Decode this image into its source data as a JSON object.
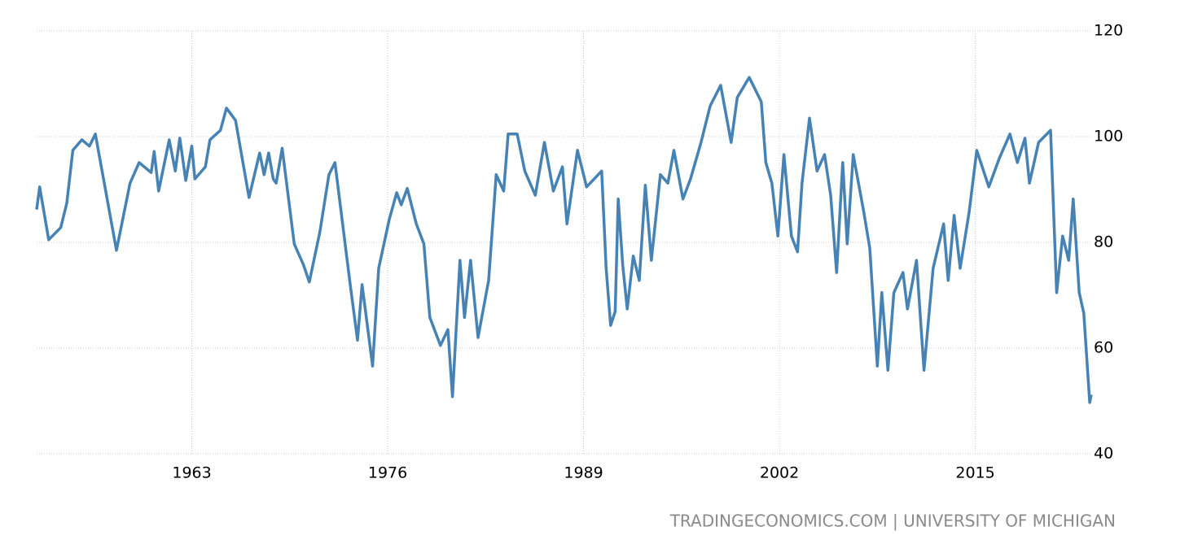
{
  "chart_data": {
    "type": "line",
    "source": "TRADINGECONOMICS.COM | UNIVERSITY OF MICHIGAN",
    "x": [
      1952.7,
      1952.9,
      1953.5,
      1954.3,
      1954.7,
      1955.1,
      1955.7,
      1956.2,
      1956.6,
      1958.0,
      1958.9,
      1959.5,
      1960.3,
      1960.5,
      1960.8,
      1961.5,
      1961.9,
      1962.2,
      1962.6,
      1963.0,
      1963.2,
      1963.9,
      1964.2,
      1964.9,
      1965.3,
      1965.9,
      1966.8,
      1967.5,
      1967.8,
      1968.1,
      1968.4,
      1968.6,
      1969.0,
      1969.8,
      1970.4,
      1970.8,
      1971.5,
      1972.1,
      1972.5,
      1973.5,
      1974.0,
      1974.3,
      1975.0,
      1975.4,
      1976.1,
      1976.6,
      1976.9,
      1977.3,
      1977.9,
      1978.4,
      1978.8,
      1979.5,
      1980.0,
      1980.3,
      1980.8,
      1981.1,
      1981.5,
      1982.0,
      1982.7,
      1983.2,
      1983.7,
      1984.0,
      1984.6,
      1985.1,
      1985.8,
      1986.4,
      1987.0,
      1987.6,
      1987.9,
      1988.6,
      1989.2,
      1990.2,
      1990.5,
      1990.8,
      1991.1,
      1991.3,
      1991.6,
      1991.9,
      1992.3,
      1992.7,
      1993.1,
      1993.5,
      1994.1,
      1994.6,
      1995.0,
      1995.6,
      1996.1,
      1996.8,
      1997.4,
      1998.1,
      1998.8,
      1999.2,
      2000.0,
      2000.8,
      2001.1,
      2001.5,
      2001.9,
      2002.3,
      2002.8,
      2003.2,
      2003.5,
      2004.0,
      2004.5,
      2005.0,
      2005.4,
      2005.8,
      2006.2,
      2006.5,
      2006.9,
      2007.6,
      2008.0,
      2008.5,
      2008.8,
      2009.2,
      2009.6,
      2010.2,
      2010.5,
      2011.1,
      2011.6,
      2012.2,
      2012.9,
      2013.2,
      2013.6,
      2014.0,
      2014.6,
      2015.1,
      2015.9,
      2016.6,
      2017.3,
      2017.8,
      2018.3,
      2018.6,
      2019.2,
      2020.0,
      2020.4,
      2020.8,
      2021.2,
      2021.5,
      2021.9,
      2022.2,
      2022.6,
      2022.7
    ],
    "series": [
      {
        "color": "#4682b4",
        "values": [
          86.2,
          90.5,
          80.5,
          82.8,
          87.4,
          97.4,
          99.4,
          98.2,
          100.5,
          78.5,
          91.2,
          95.1,
          93.2,
          97.2,
          89.7,
          99.4,
          93.5,
          99.7,
          91.7,
          98.2,
          92.0,
          94.3,
          99.4,
          101.2,
          105.4,
          103.1,
          88.5,
          96.9,
          92.8,
          96.9,
          92.0,
          91.2,
          97.8,
          79.7,
          75.8,
          72.5,
          82.0,
          92.8,
          95.1,
          72.3,
          61.5,
          72.0,
          56.6,
          75.1,
          84.3,
          89.4,
          87.1,
          90.2,
          83.5,
          79.7,
          65.8,
          60.5,
          63.5,
          50.8,
          76.6,
          65.8,
          76.6,
          62.0,
          72.8,
          92.8,
          89.7,
          100.5,
          100.5,
          93.5,
          88.9,
          98.9,
          89.7,
          94.3,
          83.5,
          97.4,
          90.5,
          93.5,
          75.1,
          64.3,
          66.9,
          88.2,
          75.8,
          67.4,
          77.4,
          72.8,
          90.8,
          76.6,
          92.8,
          91.2,
          97.4,
          88.2,
          92.0,
          98.9,
          105.8,
          109.7,
          98.9,
          107.4,
          111.2,
          106.6,
          95.1,
          91.2,
          81.2,
          96.6,
          81.2,
          78.2,
          91.2,
          103.5,
          93.5,
          96.6,
          88.9,
          74.3,
          95.1,
          79.7,
          96.6,
          85.8,
          78.9,
          56.6,
          70.5,
          55.8,
          70.5,
          74.3,
          67.4,
          76.6,
          55.8,
          75.1,
          83.5,
          72.8,
          85.1,
          75.1,
          85.8,
          97.4,
          90.5,
          95.9,
          100.5,
          95.1,
          99.7,
          91.2,
          98.9,
          101.2,
          70.5,
          81.2,
          76.6,
          88.2,
          70.5,
          66.6,
          49.7,
          51.2
        ]
      }
    ],
    "xlim": [
      1952.7,
      2022.7
    ],
    "xticks": [
      1963,
      1976,
      1989,
      2002,
      2015
    ],
    "ylim": [
      40,
      120
    ],
    "yticks": [
      40,
      60,
      80,
      100,
      120
    ],
    "grid": true
  }
}
